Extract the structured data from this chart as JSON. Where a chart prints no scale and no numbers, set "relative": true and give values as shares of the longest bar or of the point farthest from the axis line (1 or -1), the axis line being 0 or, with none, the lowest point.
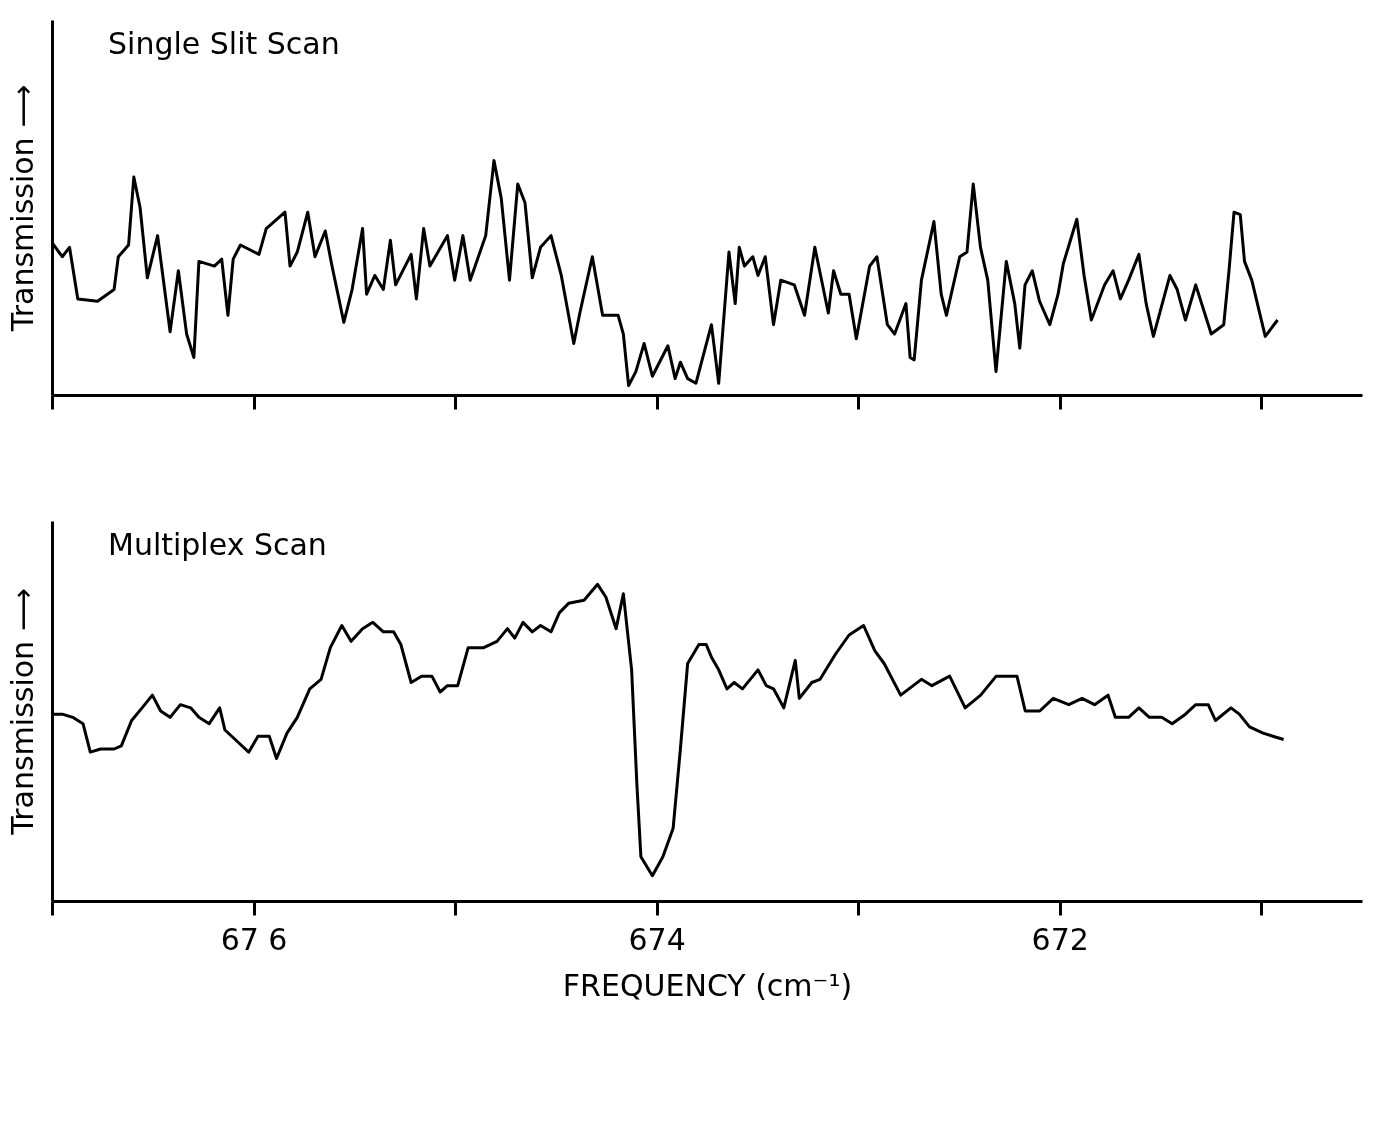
{
  "chart_data": [
    {
      "type": "line",
      "title": "Single Slit Scan",
      "ylabel": "Transmission ⟶",
      "relative": true,
      "tick_labels": false,
      "grid": false,
      "legend": false,
      "marker": "none",
      "line_style": "solid",
      "xlim": [
        677,
        670.5
      ],
      "xticks": [
        {
          "value": 677,
          "label": null
        },
        {
          "value": 676,
          "label": null
        },
        {
          "value": 675,
          "label": null
        },
        {
          "value": 674,
          "label": null
        },
        {
          "value": 673,
          "label": null
        },
        {
          "value": 672,
          "label": null
        },
        {
          "value": 671,
          "label": null
        }
      ],
      "series": [
        {
          "color": "#000000",
          "x": [
            677.0,
            676.949,
            676.913,
            676.872,
            676.774,
            676.692,
            676.671,
            676.62,
            676.594,
            676.563,
            676.527,
            676.476,
            676.414,
            676.373,
            676.332,
            676.296,
            676.271,
            676.194,
            676.158,
            676.127,
            676.101,
            676.065,
            675.973,
            675.937,
            675.844,
            675.819,
            675.783,
            675.731,
            675.695,
            675.644,
            675.613,
            675.552,
            675.511,
            675.459,
            675.439,
            675.398,
            675.356,
            675.321,
            675.295,
            675.218,
            675.192,
            675.156,
            675.125,
            675.038,
            675.002,
            674.961,
            674.925,
            674.848,
            674.807,
            674.771,
            674.73,
            674.689,
            674.653,
            674.617,
            674.576,
            674.524,
            674.473,
            674.411,
            674.381,
            674.319,
            674.268,
            674.191,
            674.165,
            674.139,
            674.103,
            674.062,
            674.021,
            673.944,
            673.908,
            673.882,
            673.846,
            673.805,
            673.728,
            673.692,
            673.641,
            673.61,
            673.59,
            673.564,
            673.523,
            673.497,
            673.461,
            673.42,
            673.384,
            673.317,
            673.266,
            673.215,
            673.148,
            673.122,
            673.086,
            673.045,
            673.009,
            672.943,
            672.907,
            672.855,
            672.819,
            672.763,
            672.742,
            672.722,
            672.686,
            672.624,
            672.588,
            672.562,
            672.496,
            672.46,
            672.429,
            672.393,
            672.357,
            672.316,
            672.265,
            672.223,
            672.198,
            672.172,
            672.136,
            672.1,
            672.049,
            672.008,
            671.982,
            671.915,
            671.879,
            671.843,
            671.777,
            671.735,
            671.699,
            671.658,
            671.607,
            671.571,
            671.535,
            671.453,
            671.417,
            671.376,
            671.325,
            671.248,
            671.186,
            671.16,
            671.135,
            671.104,
            671.083,
            671.047,
            670.98,
            670.919
          ],
          "values": [
            0.65,
            0.59,
            0.63,
            0.41,
            0.4,
            0.45,
            0.59,
            0.64,
            0.93,
            0.8,
            0.5,
            0.68,
            0.27,
            0.53,
            0.26,
            0.16,
            0.57,
            0.55,
            0.58,
            0.34,
            0.58,
            0.64,
            0.6,
            0.71,
            0.78,
            0.55,
            0.61,
            0.78,
            0.59,
            0.7,
            0.56,
            0.31,
            0.45,
            0.71,
            0.43,
            0.51,
            0.45,
            0.66,
            0.47,
            0.6,
            0.41,
            0.71,
            0.55,
            0.68,
            0.49,
            0.68,
            0.49,
            0.68,
            1.0,
            0.84,
            0.49,
            0.9,
            0.82,
            0.5,
            0.63,
            0.68,
            0.51,
            0.22,
            0.35,
            0.59,
            0.34,
            0.34,
            0.26,
            0.04,
            0.1,
            0.22,
            0.08,
            0.21,
            0.07,
            0.14,
            0.07,
            0.05,
            0.3,
            0.05,
            0.61,
            0.39,
            0.63,
            0.55,
            0.59,
            0.51,
            0.59,
            0.3,
            0.49,
            0.47,
            0.34,
            0.63,
            0.35,
            0.53,
            0.43,
            0.43,
            0.24,
            0.55,
            0.59,
            0.3,
            0.26,
            0.39,
            0.16,
            0.15,
            0.49,
            0.74,
            0.43,
            0.34,
            0.59,
            0.61,
            0.9,
            0.63,
            0.49,
            0.1,
            0.57,
            0.39,
            0.2,
            0.47,
            0.53,
            0.4,
            0.3,
            0.43,
            0.56,
            0.75,
            0.51,
            0.32,
            0.47,
            0.53,
            0.41,
            0.49,
            0.6,
            0.39,
            0.25,
            0.51,
            0.45,
            0.32,
            0.47,
            0.26,
            0.3,
            0.53,
            0.78,
            0.77,
            0.57,
            0.49,
            0.25,
            0.32
          ]
        }
      ]
    },
    {
      "type": "line",
      "title": "Multiplex Scan",
      "ylabel": "Transmission ⟶",
      "xlabel": "FREQUENCY (cm⁻¹)",
      "relative": true,
      "tick_labels": "x",
      "grid": false,
      "legend": false,
      "marker": "none",
      "line_style": "solid",
      "xlim": [
        677,
        670.5
      ],
      "xticks": [
        {
          "value": 677,
          "label": null
        },
        {
          "value": 676,
          "label": "67 6"
        },
        {
          "value": 675,
          "label": null
        },
        674,
        {
          "value": 673,
          "label": null
        },
        672,
        {
          "value": 671,
          "label": null
        }
      ],
      "series": [
        {
          "color": "#000000",
          "x": [
            677.0,
            676.949,
            676.897,
            676.846,
            676.81,
            676.759,
            676.692,
            676.656,
            676.605,
            676.553,
            676.502,
            676.461,
            676.414,
            676.363,
            676.312,
            676.271,
            676.22,
            676.168,
            676.142,
            676.091,
            676.024,
            675.978,
            675.922,
            675.886,
            675.834,
            675.783,
            675.721,
            675.665,
            675.619,
            675.562,
            675.516,
            675.459,
            675.408,
            675.356,
            675.305,
            675.269,
            675.218,
            675.166,
            675.115,
            675.074,
            675.038,
            674.987,
            674.935,
            674.858,
            674.792,
            674.74,
            674.704,
            674.663,
            674.617,
            674.576,
            674.524,
            674.483,
            674.437,
            674.36,
            674.293,
            674.252,
            674.201,
            674.165,
            674.124,
            674.098,
            674.078,
            674.021,
            673.969,
            673.918,
            673.882,
            673.846,
            673.79,
            673.754,
            673.728,
            673.692,
            673.651,
            673.615,
            673.574,
            673.497,
            673.456,
            673.42,
            673.369,
            673.312,
            673.292,
            673.23,
            673.189,
            673.112,
            673.045,
            672.973,
            672.917,
            672.871,
            672.789,
            672.686,
            672.634,
            672.546,
            672.469,
            672.392,
            672.315,
            672.212,
            672.171,
            672.099,
            672.032,
            671.955,
            671.889,
            671.827,
            671.76,
            671.724,
            671.658,
            671.607,
            671.555,
            671.494,
            671.442,
            671.376,
            671.325,
            671.263,
            671.227,
            671.15,
            671.109,
            671.058,
            670.991,
            670.889
          ],
          "values": [
            0.59,
            0.59,
            0.58,
            0.56,
            0.47,
            0.48,
            0.48,
            0.49,
            0.57,
            0.61,
            0.65,
            0.6,
            0.58,
            0.62,
            0.61,
            0.58,
            0.56,
            0.61,
            0.54,
            0.51,
            0.47,
            0.52,
            0.52,
            0.45,
            0.53,
            0.58,
            0.67,
            0.7,
            0.8,
            0.87,
            0.82,
            0.86,
            0.88,
            0.85,
            0.85,
            0.81,
            0.69,
            0.71,
            0.71,
            0.66,
            0.68,
            0.68,
            0.8,
            0.8,
            0.82,
            0.86,
            0.83,
            0.88,
            0.85,
            0.87,
            0.85,
            0.91,
            0.94,
            0.95,
            1.0,
            0.96,
            0.86,
            0.97,
            0.73,
            0.37,
            0.14,
            0.08,
            0.14,
            0.23,
            0.48,
            0.75,
            0.81,
            0.81,
            0.77,
            0.73,
            0.67,
            0.69,
            0.67,
            0.73,
            0.68,
            0.67,
            0.61,
            0.76,
            0.64,
            0.69,
            0.7,
            0.78,
            0.84,
            0.87,
            0.79,
            0.75,
            0.65,
            0.7,
            0.68,
            0.71,
            0.61,
            0.65,
            0.71,
            0.71,
            0.6,
            0.6,
            0.64,
            0.62,
            0.64,
            0.62,
            0.65,
            0.58,
            0.58,
            0.61,
            0.58,
            0.58,
            0.56,
            0.59,
            0.62,
            0.62,
            0.57,
            0.61,
            0.59,
            0.55,
            0.53,
            0.51
          ]
        }
      ]
    }
  ]
}
